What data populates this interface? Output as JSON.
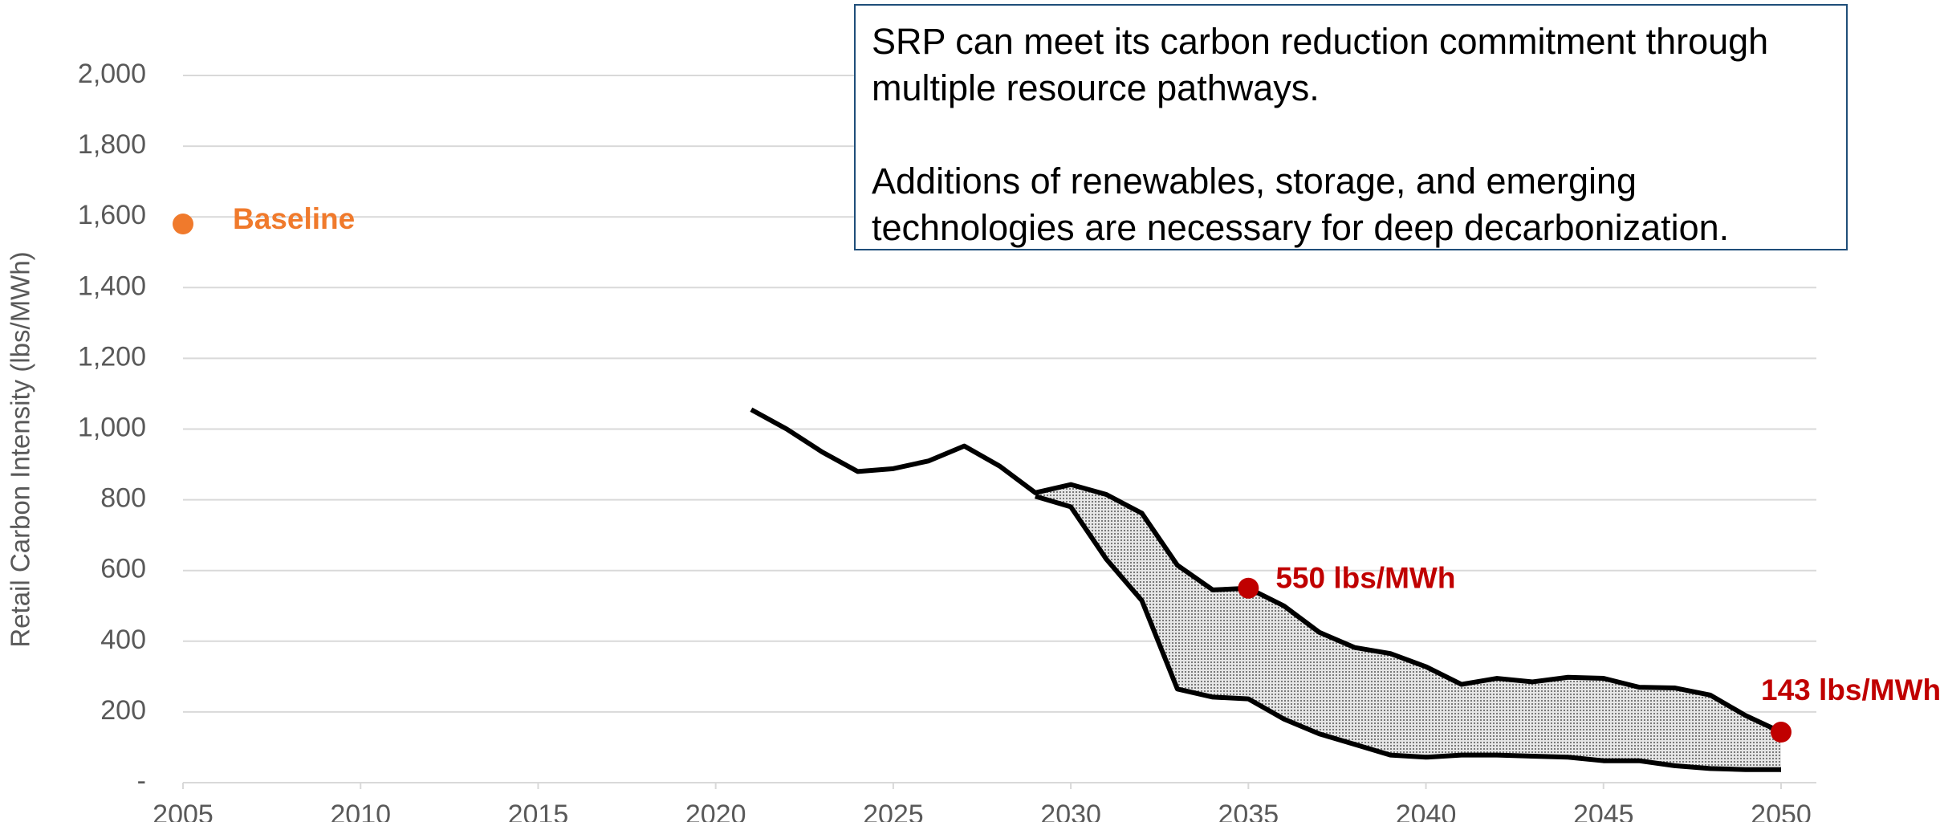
{
  "chart_data": {
    "type": "line",
    "ylabel": "Retail Carbon Intensity (lbs/MWh)",
    "xlim": [
      2005,
      2050
    ],
    "xticks": [
      2005,
      2010,
      2015,
      2020,
      2025,
      2030,
      2035,
      2040,
      2045,
      2050
    ],
    "ylim": [
      0,
      2000
    ],
    "yticks": [
      {
        "value": 0,
        "label": "-"
      },
      200,
      400,
      600,
      800,
      {
        "value": 1000,
        "label": "1,000"
      },
      {
        "value": 1200,
        "label": "1,200"
      },
      {
        "value": 1400,
        "label": "1,400"
      },
      {
        "value": 1600,
        "label": "1,600"
      },
      {
        "value": 1800,
        "label": "1,800"
      },
      {
        "value": 2000,
        "label": "2,000"
      }
    ],
    "grid": true,
    "series": [
      {
        "color": "#000000",
        "x": [
          2021,
          2022,
          2023,
          2024,
          2025,
          2026,
          2027,
          2028,
          2029,
          2030,
          2031,
          2032,
          2033,
          2034,
          2035,
          2036,
          2037,
          2038,
          2039,
          2040,
          2041,
          2042,
          2043,
          2044,
          2045,
          2046,
          2047,
          2048,
          2049,
          2050
        ],
        "values": [
          1055,
          1000,
          935,
          880,
          888,
          910,
          952,
          895,
          820,
          843,
          815,
          762,
          615,
          545,
          550,
          500,
          425,
          382,
          365,
          328,
          278,
          295,
          285,
          298,
          295,
          270,
          268,
          248,
          190,
          143
        ]
      },
      {
        "color": "#000000",
        "x": [
          2029,
          2030,
          2031,
          2032,
          2033,
          2034,
          2035,
          2036,
          2037,
          2038,
          2039,
          2040,
          2041,
          2042,
          2043,
          2044,
          2045,
          2046,
          2047,
          2048,
          2049,
          2050
        ],
        "values": [
          810,
          780,
          632,
          515,
          265,
          242,
          237,
          180,
          138,
          108,
          78,
          72,
          78,
          78,
          75,
          72,
          62,
          62,
          48,
          40,
          37,
          37
        ]
      }
    ],
    "shade_color": "#8c8c8c",
    "points": [
      {
        "x": 2005,
        "y": 1580,
        "label": "Baseline",
        "color": "#f07a2c"
      },
      {
        "x": 2035,
        "y": 550,
        "label": "550 lbs/MWh",
        "color": "#c00000"
      },
      {
        "x": 2050,
        "y": 143,
        "label": "143 lbs/MWh",
        "color": "#c00000"
      }
    ]
  },
  "text_box": {
    "paragraphs": [
      "SRP can meet its carbon reduction commitment through multiple resource pathways.",
      "Additions of renewables, storage, and emerging technologies are necessary for deep decarbonization."
    ]
  }
}
